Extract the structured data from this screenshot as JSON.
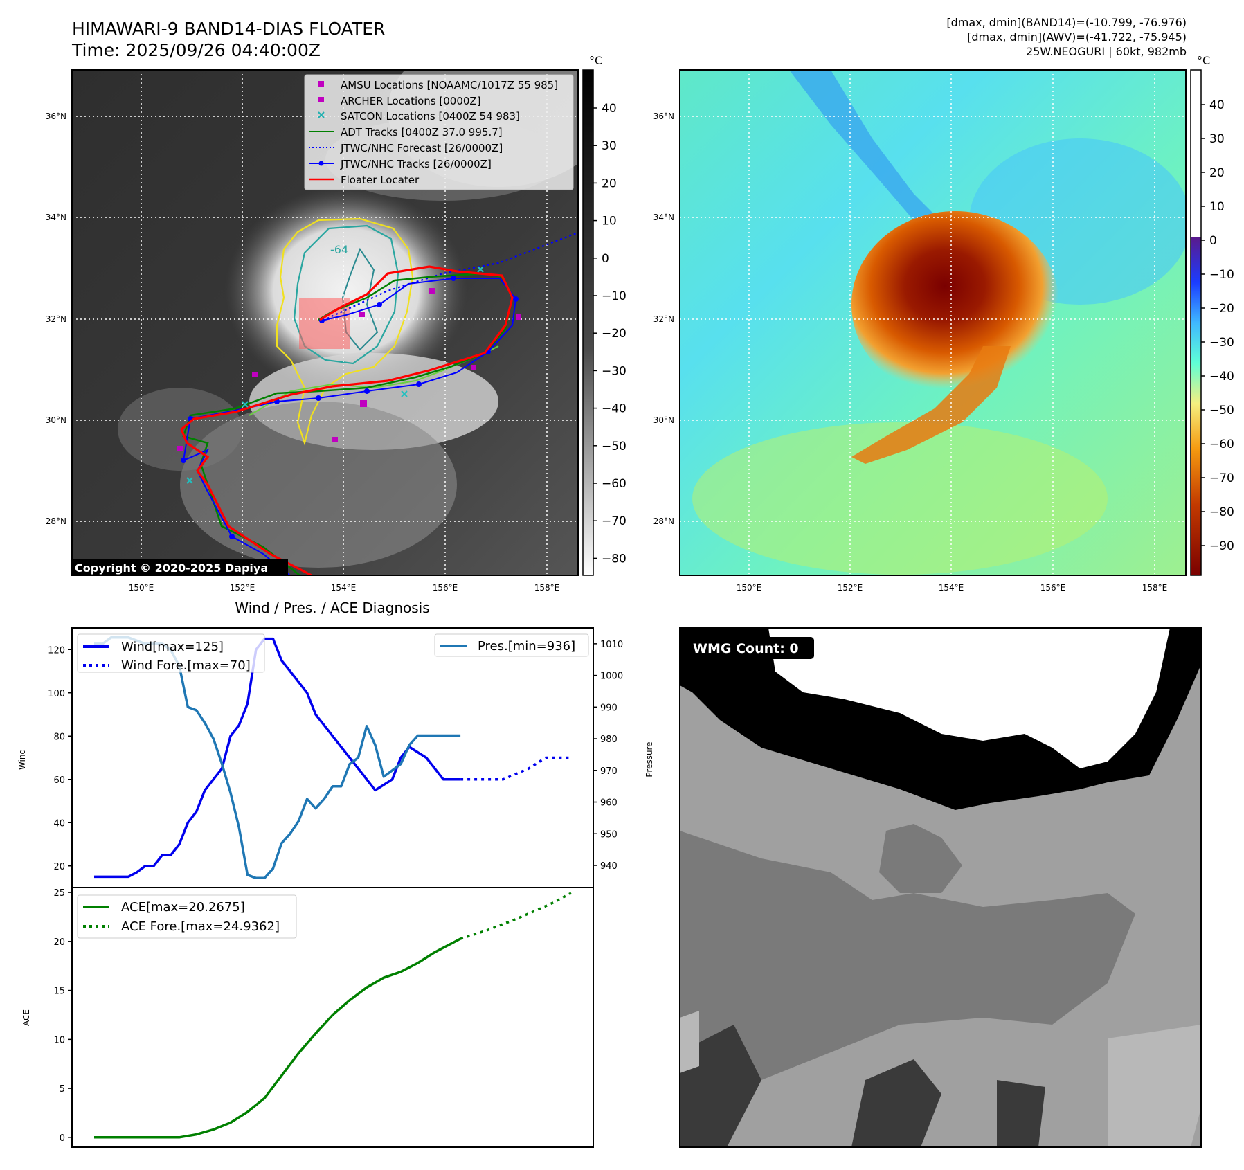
{
  "header": {
    "title_line1": "HIMAWARI-9 BAND14-DIAS FLOATER",
    "title_line2": "Time: 2025/09/26 04:40:00Z",
    "info_line1": "[dmax, dmin](BAND14)=(-10.799, -76.976)",
    "info_line2": "[dmax, dmin](AWV)=(-41.722, -75.945)",
    "info_line3": "25W.NEOGURI | 60kt, 982mb"
  },
  "ir_panel": {
    "lon_ticks": [
      "150°E",
      "152°E",
      "154°E",
      "156°E",
      "158°E"
    ],
    "lat_ticks": [
      "36°N",
      "34°N",
      "32°N",
      "30°N",
      "28°N"
    ],
    "contour_label": "-64",
    "copyright": "Copyright © 2020-2025 Dapiya",
    "legend": [
      {
        "label": "AMSU Locations [NOAAMC/1017Z 55 985]",
        "marker": "square",
        "color": "#c000c0"
      },
      {
        "label": "ARCHER Locations [0000Z]",
        "marker": "square",
        "color": "#c000c0"
      },
      {
        "label": "SATCON Locations [0400Z 54 983]",
        "marker": "x",
        "color": "#20b0b0"
      },
      {
        "label": "ADT Tracks [0400Z 37.0 995.7]",
        "marker": "line",
        "color": "#008000"
      },
      {
        "label": "JTWC/NHC Forecast [26/0000Z]",
        "marker": "dotted",
        "color": "#0000ff"
      },
      {
        "label": "JTWC/NHC Tracks [26/0000Z]",
        "marker": "line-dot",
        "color": "#0000ff"
      },
      {
        "label": "Floater Locater",
        "marker": "line",
        "color": "#ff0000"
      }
    ],
    "colorbar_unit": "°C",
    "colorbar_ticks": [
      "40",
      "30",
      "20",
      "10",
      "0",
      "−10",
      "−20",
      "−30",
      "−40",
      "−50",
      "−60",
      "−70",
      "−80"
    ],
    "track_color": "#0000ff",
    "floater_color": "#ff0000",
    "adt_color": "#008000"
  },
  "wv_panel": {
    "lon_ticks": [
      "150°E",
      "152°E",
      "154°E",
      "156°E",
      "158°E"
    ],
    "lat_ticks": [
      "36°N",
      "34°N",
      "32°N",
      "30°N",
      "28°N"
    ],
    "colorbar_unit": "°C",
    "colorbar_ticks": [
      "40",
      "30",
      "20",
      "10",
      "0",
      "−10",
      "−20",
      "−30",
      "−40",
      "−50",
      "−60",
      "−70",
      "−80",
      "−90"
    ]
  },
  "wmg_panel": {
    "label": "WMG Count: 0"
  },
  "chart_data": [
    {
      "type": "line",
      "title": "Wind / Pres. / ACE Diagnosis",
      "ylabel": "Wind",
      "ylabel_right": "Pressure",
      "ylim": [
        10,
        130
      ],
      "ylim_right": [
        933,
        1015
      ],
      "yticks": [
        20,
        40,
        60,
        80,
        100,
        120
      ],
      "yticks_right": [
        940,
        950,
        960,
        970,
        980,
        990,
        1000,
        1010
      ],
      "x_range": [
        0,
        56
      ],
      "series": [
        {
          "name": "Wind[max=125]",
          "axis": "left",
          "color": "#0000ee",
          "style": "solid",
          "x": [
            0,
            4,
            5,
            6,
            7,
            8,
            9,
            10,
            11,
            12,
            13,
            15,
            16,
            17,
            18,
            19,
            20,
            21,
            22,
            23,
            25,
            26,
            27,
            29,
            31,
            33,
            35,
            36,
            37,
            39,
            41,
            43
          ],
          "y": [
            15,
            15,
            17,
            20,
            20,
            25,
            25,
            30,
            40,
            45,
            55,
            65,
            80,
            85,
            95,
            120,
            125,
            125,
            115,
            110,
            100,
            90,
            85,
            75,
            65,
            55,
            60,
            70,
            75,
            70,
            60,
            60
          ]
        },
        {
          "name": "Wind Fore.[max=70]",
          "axis": "left",
          "color": "#0000ee",
          "style": "dotted",
          "x": [
            43,
            46,
            48,
            51,
            53,
            56
          ],
          "y": [
            60,
            60,
            60,
            65,
            70,
            70
          ]
        },
        {
          "name": "Pres.[min=936]",
          "axis": "right",
          "color": "#1f77b4",
          "style": "solid",
          "x": [
            0,
            1,
            2,
            3,
            4,
            5,
            6,
            7,
            8,
            9,
            10,
            11,
            12,
            13,
            14,
            15,
            16,
            17,
            18,
            19,
            20,
            21,
            22,
            23,
            24,
            25,
            26,
            27,
            28,
            29,
            30,
            31,
            32,
            33,
            34,
            35,
            36,
            37,
            38,
            39,
            40,
            41,
            42,
            43
          ],
          "y": [
            1010,
            1010,
            1012,
            1012,
            1012,
            1011,
            1010,
            1010,
            1010,
            1008,
            1003,
            990,
            989,
            985,
            980,
            972,
            963,
            952,
            937,
            936,
            936,
            939,
            947,
            950,
            954,
            961,
            958,
            961,
            965,
            965,
            972,
            974,
            984,
            978,
            968,
            970,
            972,
            978,
            981,
            981,
            981,
            981,
            981,
            981
          ]
        }
      ],
      "series_x_cut_pressure": 41,
      "legend_left": [
        "Wind[max=125]",
        "Wind Fore.[max=70]"
      ],
      "legend_right": [
        "Pres.[min=936]"
      ]
    },
    {
      "type": "line",
      "ylabel": "ACE",
      "ylim": [
        -1,
        25.5
      ],
      "yticks": [
        0,
        5,
        10,
        15,
        20,
        25
      ],
      "x_range": [
        0,
        56
      ],
      "series": [
        {
          "name": "ACE[max=20.2675]",
          "color": "#008000",
          "style": "solid",
          "x": [
            0,
            10,
            12,
            14,
            16,
            18,
            20,
            22,
            24,
            26,
            28,
            30,
            32,
            34,
            36,
            38,
            40,
            43
          ],
          "y": [
            0,
            0,
            0.3,
            0.8,
            1.5,
            2.6,
            4.0,
            6.3,
            8.6,
            10.6,
            12.5,
            14.0,
            15.3,
            16.3,
            16.9,
            17.8,
            18.9,
            20.27
          ]
        },
        {
          "name": "ACE Fore.[max=24.9362]",
          "color": "#008000",
          "style": "dotted",
          "x": [
            43,
            46,
            49,
            52,
            54,
            56
          ],
          "y": [
            20.27,
            21.1,
            22.1,
            23.2,
            24.0,
            24.94
          ]
        }
      ],
      "legend": [
        "ACE[max=20.2675]",
        "ACE Fore.[max=24.9362]"
      ]
    }
  ]
}
